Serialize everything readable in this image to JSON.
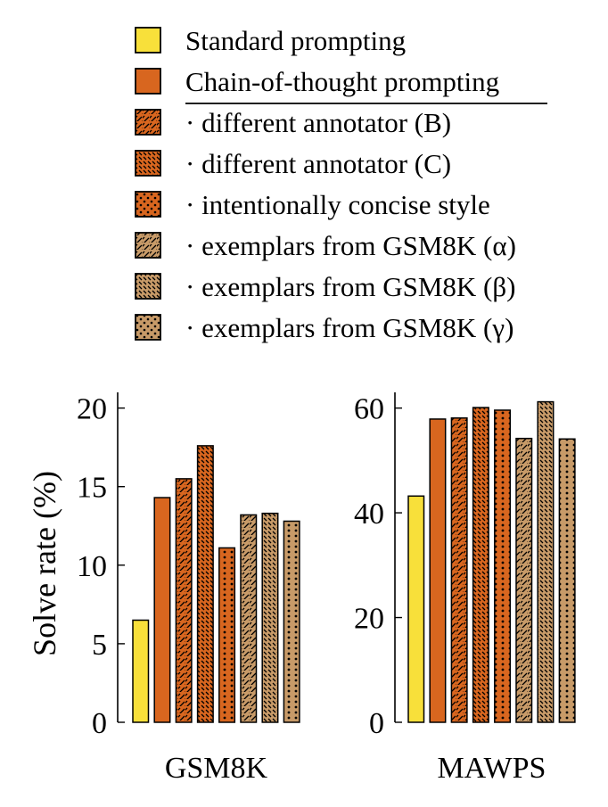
{
  "legend": [
    {
      "label": "Standard prompting",
      "fill": "#f8e03a",
      "pattern": "none"
    },
    {
      "label": "Chain-of-thought prompting",
      "fill": "#d8661f",
      "pattern": "none"
    },
    {
      "label": "· different annotator (B)",
      "fill": "#d8661f",
      "pattern": "diag"
    },
    {
      "label": "· different annotator (C)",
      "fill": "#d8661f",
      "pattern": "diag-short"
    },
    {
      "label": "· intentionally concise style",
      "fill": "#d8661f",
      "pattern": "dots"
    },
    {
      "label": "· exemplars from GSM8K (α)",
      "fill": "#c79a68",
      "pattern": "diag"
    },
    {
      "label": "· exemplars from GSM8K (β)",
      "fill": "#c79a68",
      "pattern": "diag-short"
    },
    {
      "label": "· exemplars from GSM8K (γ)",
      "fill": "#c79a68",
      "pattern": "dots"
    }
  ],
  "chart_data": [
    {
      "type": "bar",
      "title": "GSM8K",
      "ylabel": "Solve rate (%)",
      "ylim": [
        0,
        21
      ],
      "yticks": [
        0,
        5,
        10,
        15,
        20
      ],
      "series": [
        {
          "name": "Standard prompting",
          "value": 6.5
        },
        {
          "name": "Chain-of-thought prompting",
          "value": 14.3
        },
        {
          "name": "· different annotator (B)",
          "value": 15.5
        },
        {
          "name": "· different annotator (C)",
          "value": 17.6
        },
        {
          "name": "· intentionally concise style",
          "value": 11.1
        },
        {
          "name": "· exemplars from GSM8K (α)",
          "value": 13.2
        },
        {
          "name": "· exemplars from GSM8K (β)",
          "value": 13.3
        },
        {
          "name": "· exemplars from GSM8K (γ)",
          "value": 12.8
        }
      ]
    },
    {
      "type": "bar",
      "title": "MAWPS",
      "ylabel": "",
      "ylim": [
        0,
        63
      ],
      "yticks": [
        0,
        20,
        40,
        60
      ],
      "series": [
        {
          "name": "Standard prompting",
          "value": 43.2
        },
        {
          "name": "Chain-of-thought prompting",
          "value": 57.9
        },
        {
          "name": "· different annotator (B)",
          "value": 58.1
        },
        {
          "name": "· different annotator (C)",
          "value": 60.1
        },
        {
          "name": "· intentionally concise style",
          "value": 59.6
        },
        {
          "name": "· exemplars from GSM8K (α)",
          "value": 54.2
        },
        {
          "name": "· exemplars from GSM8K (β)",
          "value": 61.2
        },
        {
          "name": "· exemplars from GSM8K (γ)",
          "value": 54.1
        }
      ]
    }
  ]
}
